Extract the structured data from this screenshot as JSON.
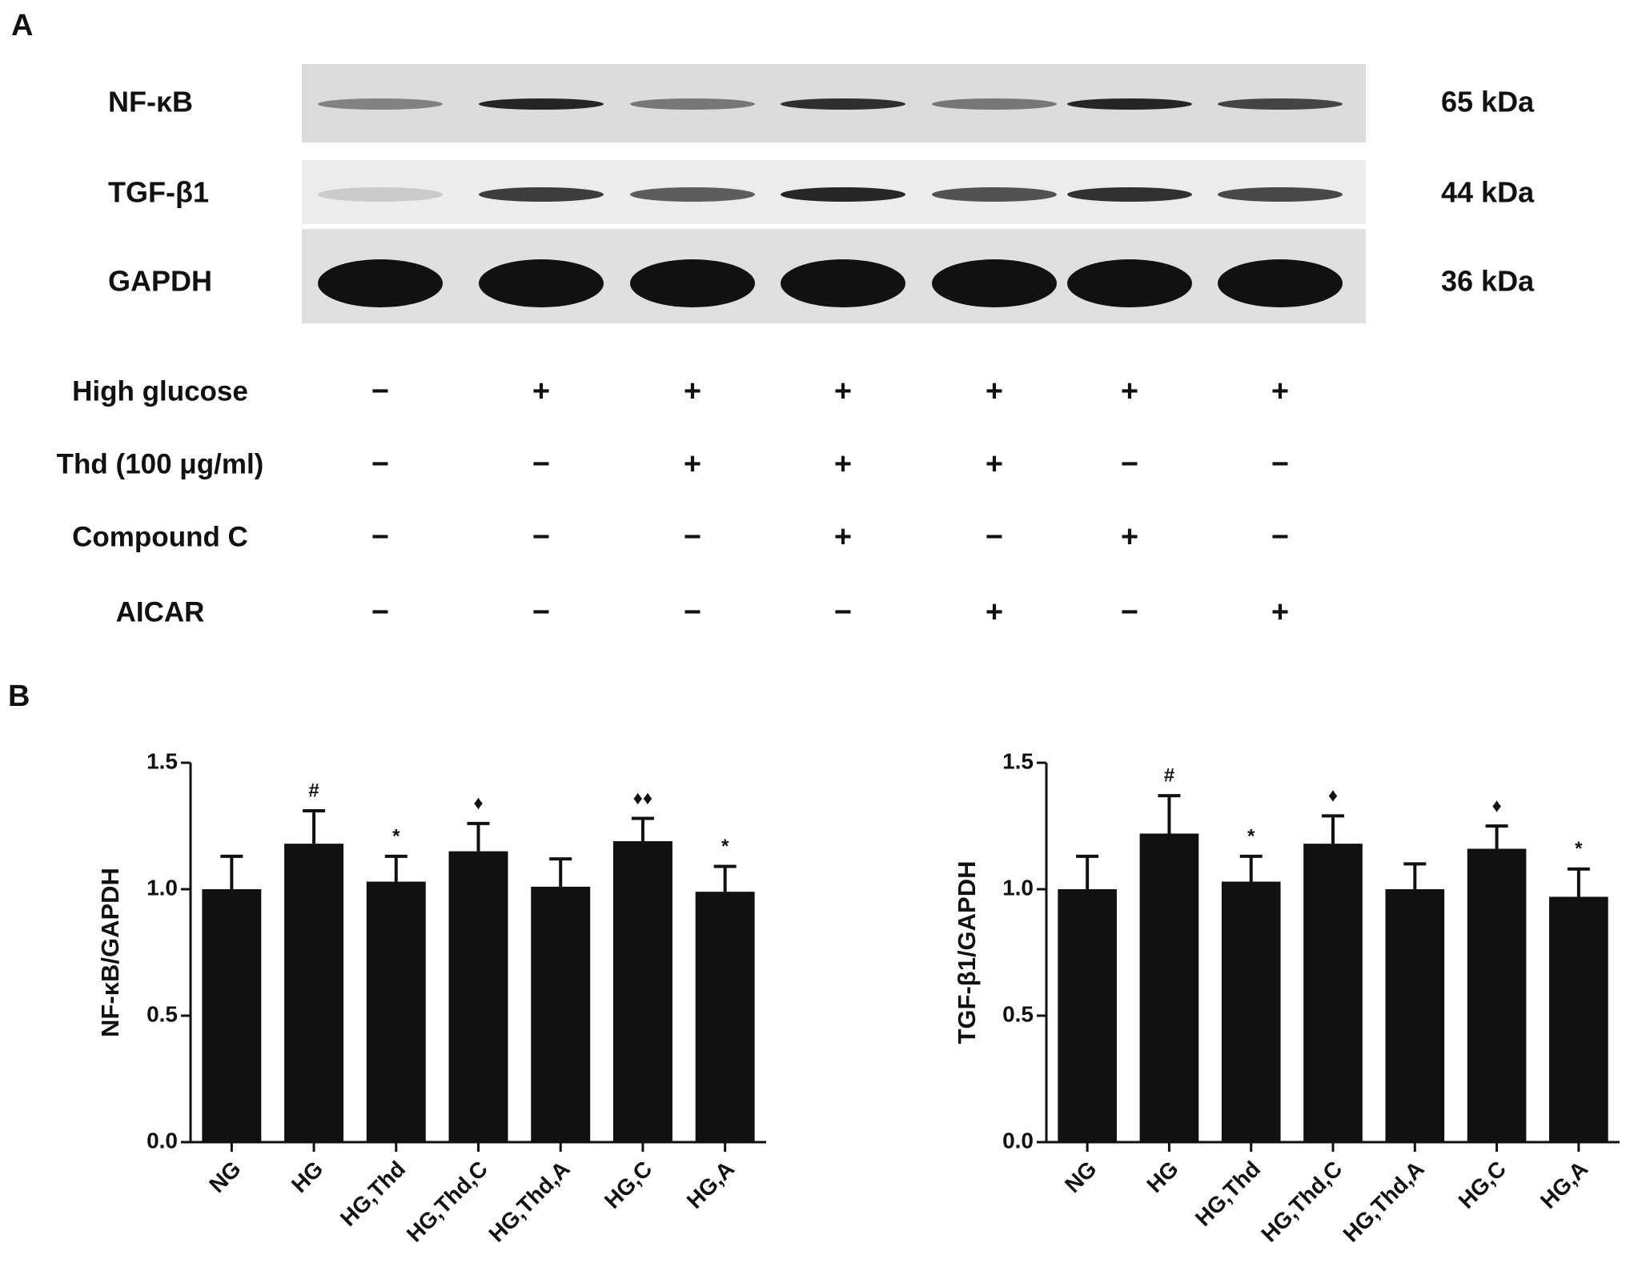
{
  "panel_labels": [
    "A",
    "B"
  ],
  "blot": {
    "bands": [
      {
        "name": "NF-κB",
        "size": "65 kDa"
      },
      {
        "name": "TGF-β1",
        "size": "44 kDa"
      },
      {
        "name": "GAPDH",
        "size": "36 kDa"
      }
    ],
    "treatments": [
      {
        "name": "High glucose",
        "signs": [
          "−",
          "+",
          "+",
          "+",
          "+",
          "+",
          "+"
        ]
      },
      {
        "name": "Thd (100 μg/ml)",
        "signs": [
          "−",
          "−",
          "+",
          "+",
          "+",
          "−",
          "−"
        ]
      },
      {
        "name": "Compound C",
        "signs": [
          "−",
          "−",
          "−",
          "+",
          "−",
          "+",
          "−"
        ]
      },
      {
        "name": "AICAR",
        "signs": [
          "−",
          "−",
          "−",
          "−",
          "+",
          "−",
          "+"
        ]
      }
    ]
  },
  "chart_data": [
    {
      "type": "bar",
      "y_label": "NF-κB/GAPDH",
      "color": "#111111",
      "categories": [
        "NG",
        "HG",
        "HG,Thd",
        "HG,Thd,C",
        "HG,Thd,A",
        "HG,C",
        "HG,A"
      ],
      "values": [
        1.0,
        1.18,
        1.03,
        1.15,
        1.01,
        1.19,
        0.99
      ],
      "errors": [
        0.13,
        0.13,
        0.1,
        0.11,
        0.11,
        0.09,
        0.1
      ],
      "annotations": [
        null,
        "#",
        "*",
        "♦",
        null,
        "♦♦",
        "*"
      ],
      "ylim": [
        0,
        1.5
      ],
      "yticks": [
        {
          "value": 0,
          "label": "0.0"
        },
        {
          "value": 0.5,
          "label": "0.5"
        },
        {
          "value": 1,
          "label": "1.0"
        },
        {
          "value": 1.5,
          "label": "1.5"
        }
      ]
    },
    {
      "type": "bar",
      "y_label": "TGF-β1/GAPDH",
      "color": "#111111",
      "categories": [
        "NG",
        "HG",
        "HG,Thd",
        "HG,Thd,C",
        "HG,Thd,A",
        "HG,C",
        "HG,A"
      ],
      "values": [
        1.0,
        1.22,
        1.03,
        1.18,
        1.0,
        1.16,
        0.97
      ],
      "errors": [
        0.13,
        0.15,
        0.1,
        0.11,
        0.1,
        0.09,
        0.11
      ],
      "annotations": [
        null,
        "#",
        "*",
        "♦",
        null,
        "♦",
        "*"
      ],
      "ylim": [
        0,
        1.5
      ],
      "yticks": [
        {
          "value": 0,
          "label": "0.0"
        },
        {
          "value": 0.5,
          "label": "0.5"
        },
        {
          "value": 1,
          "label": "1.0"
        },
        {
          "value": 1.5,
          "label": "1.5"
        }
      ]
    }
  ]
}
